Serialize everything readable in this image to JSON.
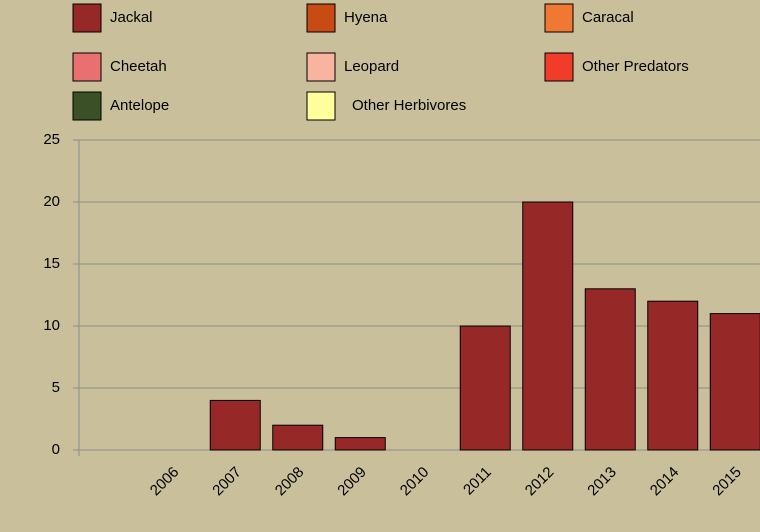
{
  "chart_data": {
    "type": "bar",
    "stacked": true,
    "categories": [
      null,
      "2006",
      "2007",
      "2008",
      "2009",
      "2010",
      "2011",
      "2012",
      "2013",
      "2014",
      "2015"
    ],
    "series": [
      {
        "name": "Jackal",
        "color": "#962828",
        "values": [
          0,
          0,
          4,
          2,
          1,
          0,
          10,
          20,
          13,
          12,
          11
        ]
      },
      {
        "name": "Hyena",
        "color": "#c84b14",
        "values": [
          0,
          0,
          0,
          0,
          0,
          0,
          0,
          0,
          0,
          0,
          0
        ]
      },
      {
        "name": "Caracal",
        "color": "#f07832",
        "values": [
          0,
          0,
          0,
          0,
          0,
          0,
          0,
          0,
          0,
          0,
          0
        ]
      },
      {
        "name": "Cheetah",
        "color": "#e87070",
        "values": [
          0,
          0,
          0,
          0,
          0,
          0,
          0,
          0,
          0,
          0,
          0
        ]
      },
      {
        "name": "Leopard",
        "color": "#f8b4a0",
        "values": [
          0,
          0,
          0,
          0,
          0,
          0,
          0,
          0,
          0,
          0,
          0
        ]
      },
      {
        "name": "Other Predators",
        "color": "#f03c28",
        "values": [
          0,
          0,
          0,
          0,
          0,
          0,
          0,
          0,
          0,
          0,
          0
        ]
      },
      {
        "name": "Antelope",
        "color": "#3c5028",
        "values": [
          0,
          0,
          0,
          0,
          0,
          0,
          0,
          0,
          0,
          0,
          0
        ]
      },
      {
        "name": "Other Herbivores",
        "color": "#ffff9c",
        "values": [
          0,
          0,
          0,
          0,
          0,
          0,
          0,
          0,
          0,
          0,
          0
        ]
      }
    ],
    "ylim": [
      0,
      25
    ],
    "yticks": [
      0,
      5,
      10,
      15,
      20,
      25
    ],
    "grid": true
  }
}
